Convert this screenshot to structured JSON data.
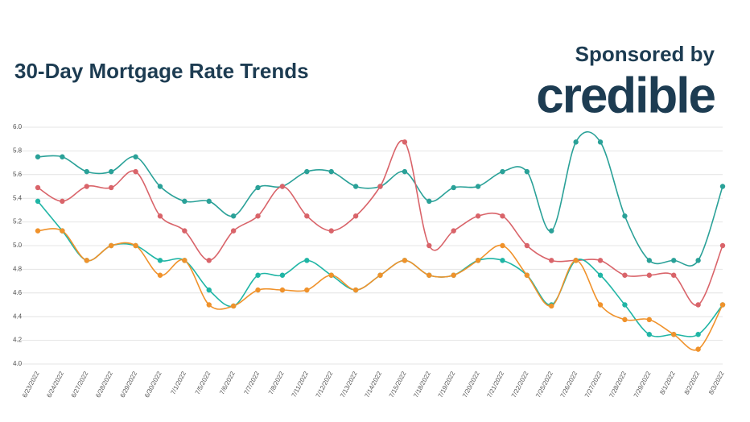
{
  "chart_data": {
    "type": "line",
    "title": "30-Day Mortgage Rate Trends",
    "sponsor_label": "Sponsored by",
    "sponsor": "credible",
    "categories": [
      "6/23/2022",
      "6/24/2022",
      "6/27/2022",
      "6/28/2022",
      "6/29/2022",
      "6/30/2022",
      "7/1/2022",
      "7/5/2022",
      "7/6/2022",
      "7/7/2022",
      "7/8/2022",
      "7/11/2022",
      "7/12/2022",
      "7/13/2022",
      "7/14/2022",
      "7/15/2022",
      "7/18/2022",
      "7/19/2022",
      "7/20/2022",
      "7/21/2022",
      "7/22/2022",
      "7/25/2022",
      "7/26/2022",
      "7/27/2022",
      "7/28/2022",
      "7/29/2022",
      "8/1/2022",
      "8/2/2022",
      "8/3/2022"
    ],
    "series": [
      {
        "color": "#2aa198",
        "values": [
          5.75,
          5.75,
          5.625,
          5.625,
          5.75,
          5.5,
          5.375,
          5.375,
          5.25,
          5.49,
          5.5,
          5.625,
          5.625,
          5.5,
          5.5,
          5.625,
          5.375,
          5.49,
          5.5,
          5.625,
          5.625,
          5.125,
          5.875,
          5.875,
          5.25,
          4.875,
          4.875,
          4.875,
          5.5
        ]
      },
      {
        "color": "#d9646a",
        "values": [
          5.49,
          5.375,
          5.5,
          5.49,
          5.625,
          5.25,
          5.125,
          4.875,
          5.125,
          5.25,
          5.5,
          5.25,
          5.125,
          5.25,
          5.5,
          5.875,
          5.0,
          5.125,
          5.25,
          5.25,
          5.0,
          4.875,
          4.875,
          4.875,
          4.75,
          4.75,
          4.75,
          4.5,
          5.0
        ]
      },
      {
        "color": "#1fb5a5",
        "values": [
          5.375,
          5.125,
          4.875,
          5.0,
          5.0,
          4.875,
          4.875,
          4.625,
          4.49,
          4.75,
          4.75,
          4.875,
          4.75,
          4.625,
          4.75,
          4.875,
          4.75,
          4.75,
          4.875,
          4.875,
          4.75,
          4.5,
          4.875,
          4.75,
          4.5,
          4.25,
          4.25,
          4.25,
          4.5
        ]
      },
      {
        "color": "#f0922b",
        "values": [
          5.125,
          5.125,
          4.875,
          5.0,
          5.0,
          4.75,
          4.875,
          4.5,
          4.49,
          4.625,
          4.625,
          4.625,
          4.75,
          4.625,
          4.75,
          4.875,
          4.75,
          4.75,
          4.875,
          5.0,
          4.75,
          4.49,
          4.875,
          4.5,
          4.375,
          4.375,
          4.25,
          4.125,
          4.5
        ]
      }
    ],
    "ylim": [
      4.0,
      6.0
    ],
    "yticks": [
      {
        "value": 4.0,
        "label": "4.0"
      },
      4.2,
      4.4,
      4.6,
      4.8,
      {
        "value": 5.0,
        "label": "5.0"
      },
      5.2,
      5.4,
      5.6,
      5.8,
      {
        "value": 6.0,
        "label": "6.0"
      }
    ],
    "grid": true
  }
}
